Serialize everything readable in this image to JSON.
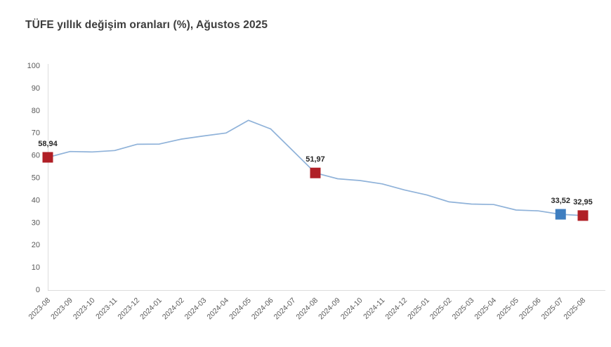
{
  "title": "TÜFE yıllık değişim oranları (%), Ağustos 2025",
  "chart_data": {
    "type": "line",
    "title": "TÜFE yıllık değişim oranları (%), Ağustos 2025",
    "categories": [
      "2023-08",
      "2023-09",
      "2023-10",
      "2023-11",
      "2023-12",
      "2024-01",
      "2024-02",
      "2024-03",
      "2024-04",
      "2024-05",
      "2024-06",
      "2024-07",
      "2024-08",
      "2024-09",
      "2024-10",
      "2024-11",
      "2024-12",
      "2025-01",
      "2025-02",
      "2025-03",
      "2025-04",
      "2025-05",
      "2025-06",
      "2025-07",
      "2025-08"
    ],
    "series": [
      {
        "name": "TÜFE yıllık değişim oranı (%)",
        "values": [
          58.94,
          61.53,
          61.36,
          61.98,
          64.77,
          64.86,
          67.07,
          68.5,
          69.8,
          75.45,
          71.6,
          61.78,
          51.97,
          49.38,
          48.58,
          47.09,
          44.38,
          42.12,
          39.05,
          38.1,
          37.86,
          35.41,
          35.05,
          33.52,
          32.95
        ]
      }
    ],
    "highlighted_points": [
      {
        "category": "2023-08",
        "value": 58.94,
        "label": "58,94",
        "marker_color": "#b01f26"
      },
      {
        "category": "2024-08",
        "value": 51.97,
        "label": "51,97",
        "marker_color": "#b01f26"
      },
      {
        "category": "2025-07",
        "value": 33.52,
        "label": "33,52",
        "marker_color": "#3e7ec0"
      },
      {
        "category": "2025-08",
        "value": 32.95,
        "label": "32,95",
        "marker_color": "#b01f26"
      }
    ],
    "ylim": [
      0,
      100
    ],
    "ytick_step": 10,
    "grid": false,
    "legend": "none",
    "line_color": "#8fb2d9",
    "axis_color": "#dcdcdc",
    "tick_label_color": "#595959",
    "data_label_color": "#262626",
    "xlabel": "",
    "ylabel": ""
  }
}
